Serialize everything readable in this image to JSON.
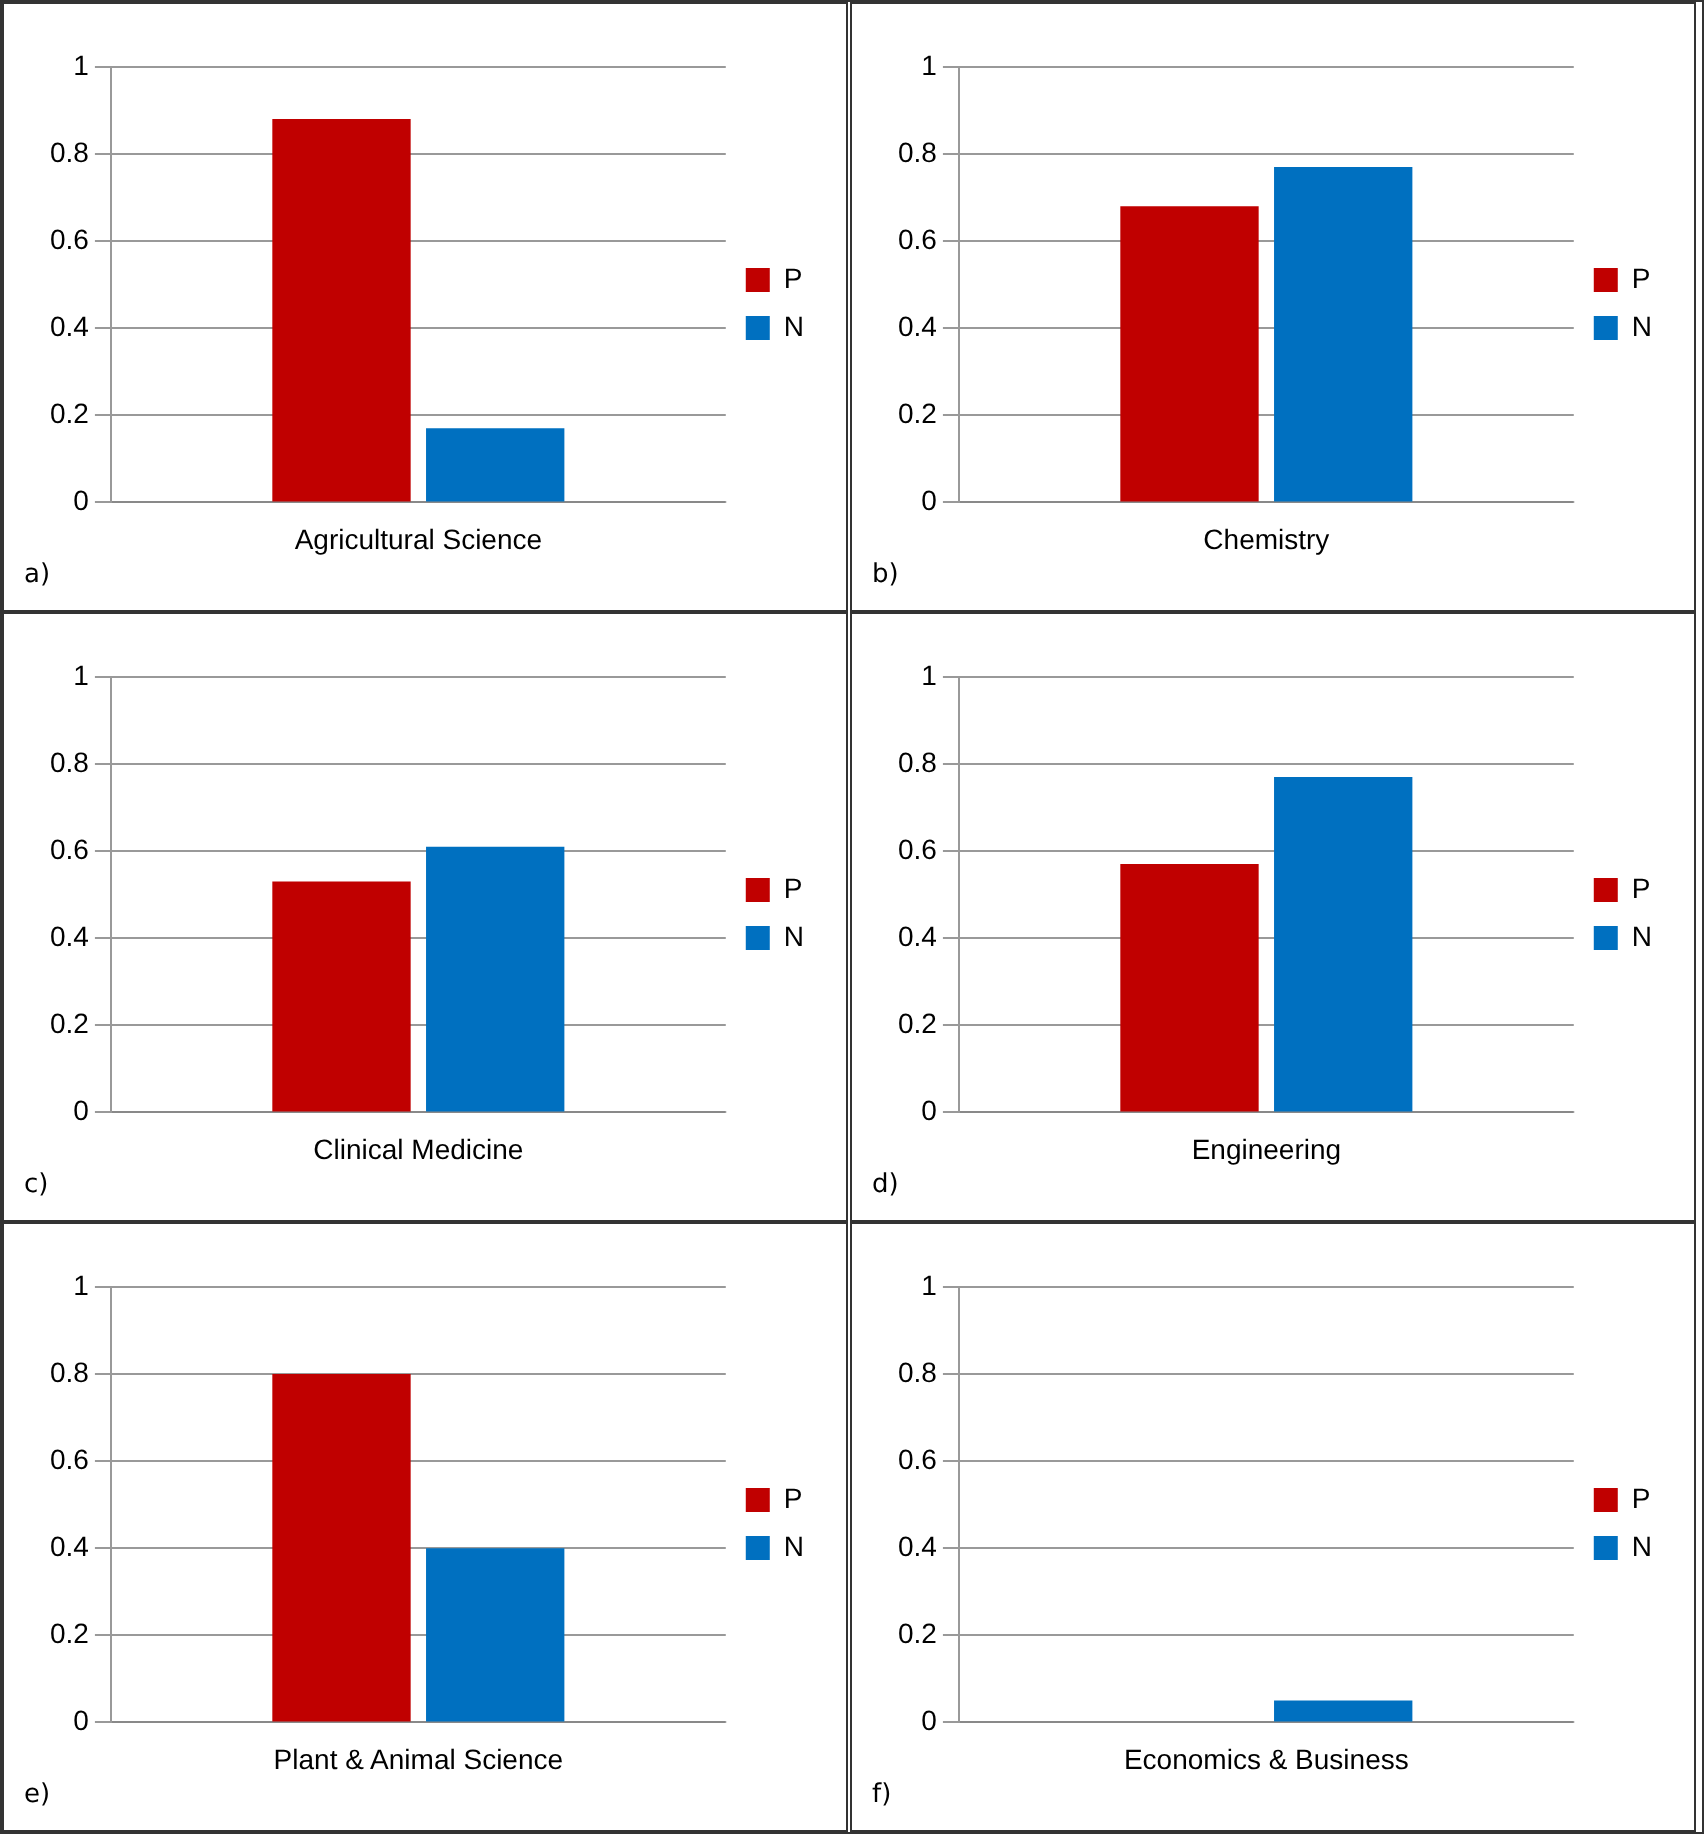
{
  "chart_data": [
    {
      "type": "bar",
      "categories": [
        "Agricultural Science"
      ],
      "series": [
        {
          "name": "P",
          "color": "#c00000",
          "values": [
            0.88
          ]
        },
        {
          "name": "N",
          "color": "#0070c0",
          "values": [
            0.17
          ]
        }
      ],
      "ylim": [
        0,
        1
      ],
      "yticks": [
        0,
        0.2,
        0.4,
        0.6,
        0.8,
        1
      ],
      "grid": "y",
      "legend": "right",
      "annotations": [
        "a)"
      ]
    },
    {
      "type": "bar",
      "categories": [
        "Chemistry"
      ],
      "series": [
        {
          "name": "P",
          "color": "#c00000",
          "values": [
            0.68
          ]
        },
        {
          "name": "N",
          "color": "#0070c0",
          "values": [
            0.77
          ]
        }
      ],
      "ylim": [
        0,
        1
      ],
      "yticks": [
        0,
        0.2,
        0.4,
        0.6,
        0.8,
        1
      ],
      "grid": "y",
      "legend": "right",
      "annotations": [
        "b)"
      ]
    },
    {
      "type": "bar",
      "categories": [
        "Clinical Medicine"
      ],
      "series": [
        {
          "name": "P",
          "color": "#c00000",
          "values": [
            0.53
          ]
        },
        {
          "name": "N",
          "color": "#0070c0",
          "values": [
            0.61
          ]
        }
      ],
      "ylim": [
        0,
        1
      ],
      "yticks": [
        0,
        0.2,
        0.4,
        0.6,
        0.8,
        1
      ],
      "grid": "y",
      "legend": "right",
      "annotations": [
        "c)"
      ]
    },
    {
      "type": "bar",
      "categories": [
        "Engineering"
      ],
      "series": [
        {
          "name": "P",
          "color": "#c00000",
          "values": [
            0.57
          ]
        },
        {
          "name": "N",
          "color": "#0070c0",
          "values": [
            0.77
          ]
        }
      ],
      "ylim": [
        0,
        1
      ],
      "yticks": [
        0,
        0.2,
        0.4,
        0.6,
        0.8,
        1
      ],
      "grid": "y",
      "legend": "right",
      "annotations": [
        "d)"
      ]
    },
    {
      "type": "bar",
      "categories": [
        "Plant & Animal Science"
      ],
      "series": [
        {
          "name": "P",
          "color": "#c00000",
          "values": [
            0.8
          ]
        },
        {
          "name": "N",
          "color": "#0070c0",
          "values": [
            0.4
          ]
        }
      ],
      "ylim": [
        0,
        1
      ],
      "yticks": [
        0,
        0.2,
        0.4,
        0.6,
        0.8,
        1
      ],
      "grid": "y",
      "legend": "right",
      "annotations": [
        "e)"
      ]
    },
    {
      "type": "bar",
      "categories": [
        "Economics & Business"
      ],
      "series": [
        {
          "name": "P",
          "color": "#c00000",
          "values": [
            0.0
          ]
        },
        {
          "name": "N",
          "color": "#0070c0",
          "values": [
            0.05
          ]
        }
      ],
      "ylim": [
        0,
        1
      ],
      "yticks": [
        0,
        0.2,
        0.4,
        0.6,
        0.8,
        1
      ],
      "grid": "y",
      "legend": "right",
      "annotations": [
        "f)"
      ]
    }
  ]
}
